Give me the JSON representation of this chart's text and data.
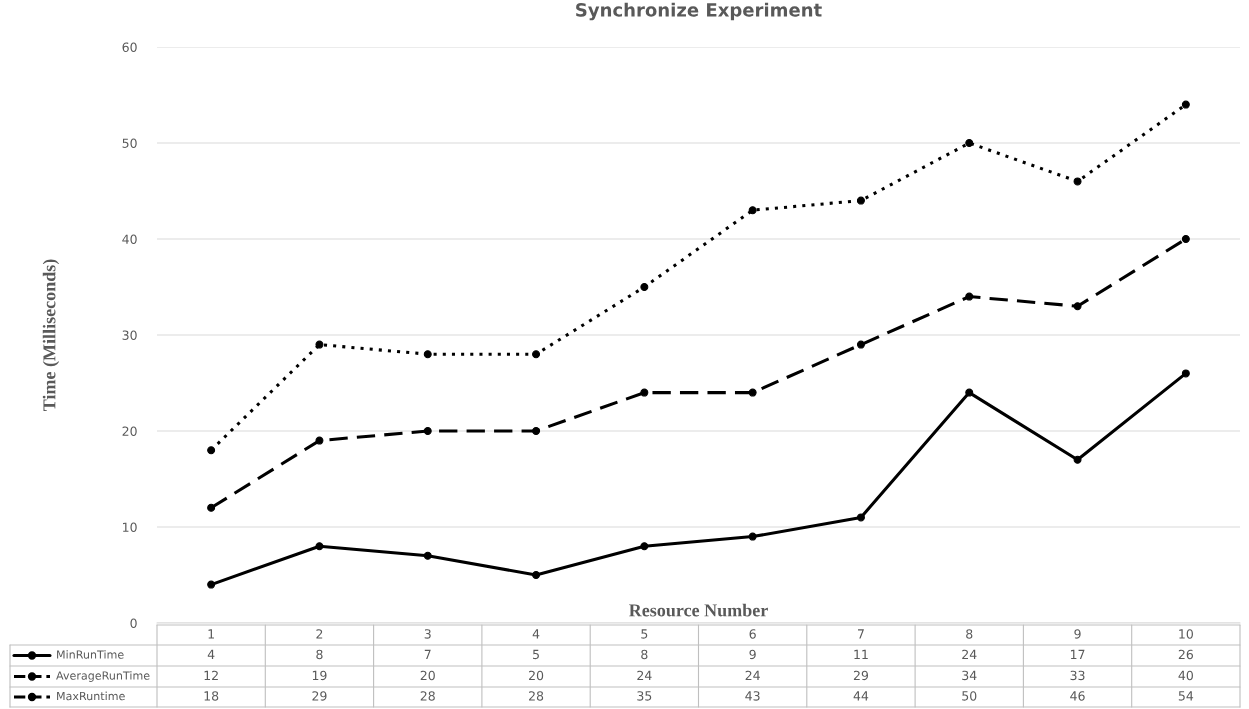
{
  "chart_data": {
    "type": "line",
    "title": "Synchronize Experiment",
    "xlabel": "Resource Number",
    "ylabel": "Time (Milliseconds)",
    "categories": [
      "1",
      "2",
      "3",
      "4",
      "5",
      "6",
      "7",
      "8",
      "9",
      "10"
    ],
    "series": [
      {
        "name": "MinRunTime",
        "color": "#000000",
        "line_style": "solid",
        "values": [
          4,
          8,
          7,
          5,
          8,
          9,
          11,
          24,
          17,
          26
        ]
      },
      {
        "name": "AverageRunTime",
        "color": "#000000",
        "line_style": "dashed",
        "values": [
          12,
          19,
          20,
          20,
          24,
          24,
          29,
          34,
          33,
          40
        ]
      },
      {
        "name": "MaxRuntime",
        "color": "#000000",
        "line_style": "dotted",
        "values": [
          18,
          29,
          28,
          28,
          35,
          43,
          44,
          50,
          46,
          54
        ]
      }
    ],
    "ylim": [
      0,
      60
    ],
    "yticks": [
      0,
      10,
      20,
      30,
      40,
      50,
      60
    ],
    "grid": "y",
    "marker": "circle",
    "legend": "bottom",
    "data_labels": true
  }
}
